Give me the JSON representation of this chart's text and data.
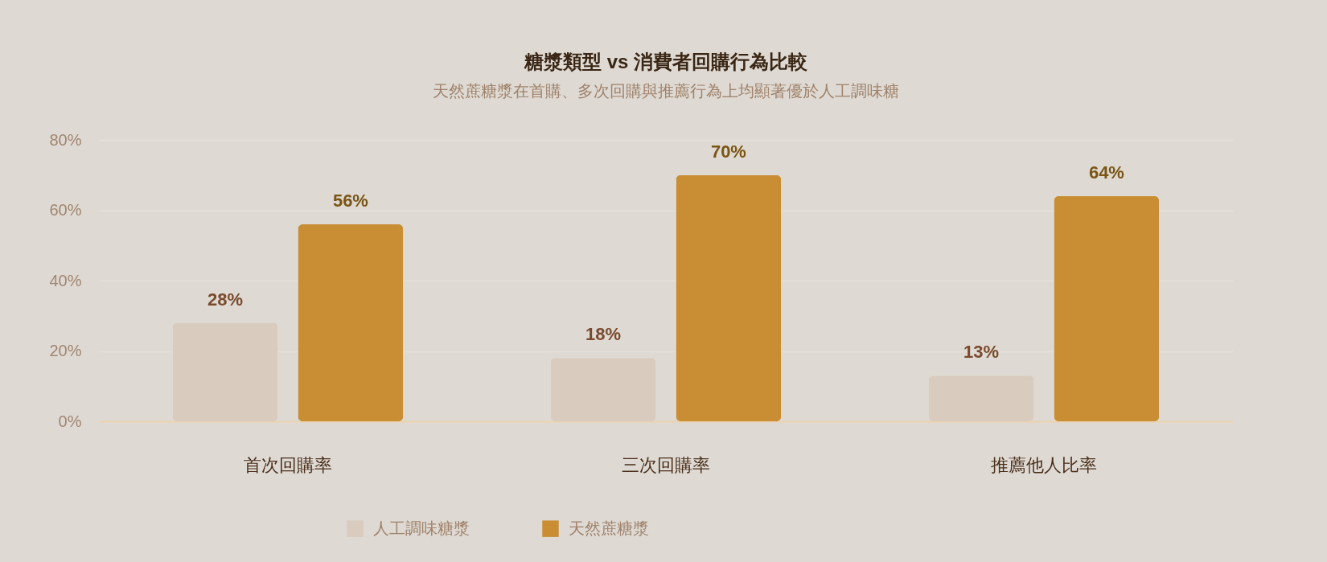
{
  "chart_data": {
    "type": "bar",
    "title": "糖漿類型 vs 消費者回購行為比較",
    "subtitle": "天然蔗糖漿在首購、多次回購與推薦行為上均顯著優於人工調味糖",
    "categories": [
      "首次回購率",
      "三次回購率",
      "推薦他人比率"
    ],
    "series": [
      {
        "name": "人工調味糖漿",
        "color": "#d9cbbd",
        "values": [
          28,
          18,
          13
        ],
        "value_labels": [
          "28%",
          "18%",
          "13%"
        ]
      },
      {
        "name": "天然蔗糖漿",
        "color": "#c98d33",
        "values": [
          56,
          70,
          64
        ],
        "value_labels": [
          "56%",
          "70%",
          "64%"
        ]
      }
    ],
    "ylim": [
      0,
      80
    ],
    "yticks": [
      {
        "value": 0,
        "label": "0%"
      },
      {
        "value": 20,
        "label": "20%"
      },
      {
        "value": 40,
        "label": "40%"
      },
      {
        "value": 60,
        "label": "60%"
      },
      {
        "value": 80,
        "label": "80%"
      }
    ],
    "grid": "y",
    "legend": "bottom"
  }
}
